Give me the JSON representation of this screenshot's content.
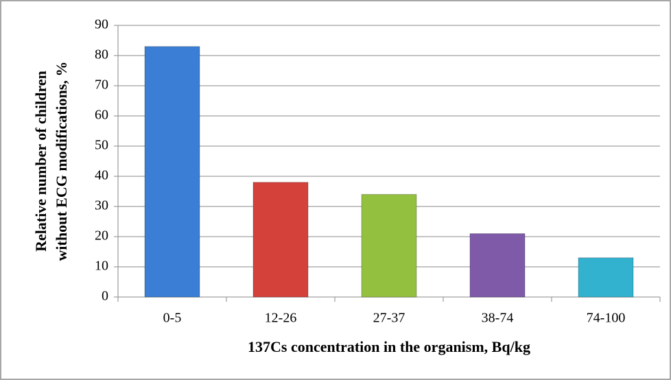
{
  "chart_data": {
    "type": "bar",
    "categories": [
      "0-5",
      "12-26",
      "27-37",
      "38-74",
      "74-100"
    ],
    "values": [
      83,
      38,
      34,
      21,
      13
    ],
    "colors": [
      "#3a7fd5",
      "#d4403a",
      "#93c13f",
      "#7e5aa9",
      "#33b2cf"
    ],
    "ylim": [
      0,
      90
    ],
    "yticks": [
      0,
      10,
      20,
      30,
      40,
      50,
      60,
      70,
      80,
      90
    ],
    "grid": true,
    "xlabel": "137Cs concentration in the organism, Bq/kg",
    "ylabel": [
      "Relative number of children",
      "without ECG modifications, %"
    ]
  }
}
